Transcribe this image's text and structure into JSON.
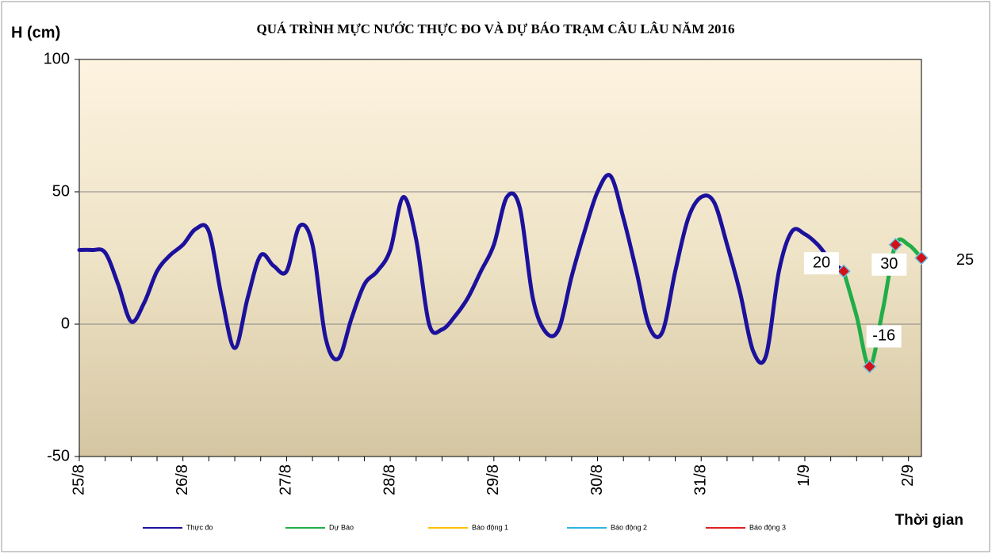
{
  "chart_data": {
    "type": "line",
    "title": "QUÁ TRÌNH MỰC NƯỚC THỰC ĐO VÀ DỰ BÁO TRẠM CÂU LÂU NĂM 2016",
    "y_label": "H (cm)",
    "x_label": "Thời gian",
    "categories": [
      "25/8",
      null,
      null,
      null,
      null,
      null,
      null,
      null,
      "26/8",
      null,
      null,
      null,
      null,
      null,
      null,
      null,
      "27/8",
      null,
      null,
      null,
      null,
      null,
      null,
      null,
      "28/8",
      null,
      null,
      null,
      null,
      null,
      null,
      null,
      "29/8",
      null,
      null,
      null,
      null,
      null,
      null,
      null,
      "30/8",
      null,
      null,
      null,
      null,
      null,
      null,
      null,
      "31/8",
      null,
      null,
      null,
      null,
      null,
      null,
      null,
      "1/9",
      null,
      null,
      null,
      null,
      null,
      null,
      null,
      "2/9",
      null
    ],
    "series": [
      {
        "name": "Thực đo",
        "color": "#1c119c",
        "values": [
          28,
          28,
          27,
          15,
          1,
          8,
          20,
          26,
          30,
          36,
          35,
          10,
          -9,
          10,
          26,
          22,
          20,
          37,
          30,
          -5,
          -13,
          2,
          15,
          20,
          28,
          48,
          32,
          0,
          -2,
          3,
          10,
          20,
          30,
          48,
          44,
          10,
          -3,
          -2,
          18,
          35,
          50,
          56,
          40,
          20,
          -1,
          -3,
          20,
          40,
          48,
          46,
          30,
          12,
          -10,
          -12,
          20,
          35,
          34,
          30,
          24,
          20,
          null,
          null,
          null,
          null,
          null,
          null
        ]
      },
      {
        "name": "Dự Báo",
        "color": "#21ad48",
        "values": [
          null,
          null,
          null,
          null,
          null,
          null,
          null,
          null,
          null,
          null,
          null,
          null,
          null,
          null,
          null,
          null,
          null,
          null,
          null,
          null,
          null,
          null,
          null,
          null,
          null,
          null,
          null,
          null,
          null,
          null,
          null,
          null,
          null,
          null,
          null,
          null,
          null,
          null,
          null,
          null,
          null,
          null,
          null,
          null,
          null,
          null,
          null,
          null,
          null,
          null,
          null,
          null,
          null,
          null,
          null,
          null,
          null,
          null,
          null,
          20,
          3,
          -16,
          5,
          30,
          30,
          25
        ],
        "value_labels": [
          null,
          null,
          null,
          null,
          null,
          null,
          null,
          null,
          null,
          null,
          null,
          null,
          null,
          null,
          null,
          null,
          null,
          null,
          null,
          null,
          null,
          null,
          null,
          null,
          null,
          null,
          null,
          null,
          null,
          null,
          null,
          null,
          null,
          null,
          null,
          null,
          null,
          null,
          null,
          null,
          null,
          null,
          null,
          null,
          null,
          null,
          null,
          null,
          null,
          null,
          null,
          null,
          null,
          null,
          null,
          null,
          null,
          null,
          null,
          "20",
          null,
          "-16",
          null,
          "30",
          null,
          "25"
        ]
      },
      {
        "name": "Báo động 1",
        "color": "#ffc000",
        "values": [
          null,
          null,
          null,
          null,
          null,
          null,
          null,
          null,
          null,
          null,
          null,
          null,
          null,
          null,
          null,
          null,
          null,
          null,
          null,
          null,
          null,
          null,
          null,
          null,
          null,
          null,
          null,
          null,
          null,
          null,
          null,
          null,
          null,
          null,
          null,
          null,
          null,
          null,
          null,
          null,
          null,
          null,
          null,
          null,
          null,
          null,
          null,
          null,
          null,
          null,
          null,
          null,
          null,
          null,
          null,
          null,
          null,
          null,
          null,
          null,
          null,
          null,
          null,
          null,
          null,
          null
        ]
      },
      {
        "name": "Báo động 2",
        "color": "#2fb3e0",
        "values": [
          null,
          null,
          null,
          null,
          null,
          null,
          null,
          null,
          null,
          null,
          null,
          null,
          null,
          null,
          null,
          null,
          null,
          null,
          null,
          null,
          null,
          null,
          null,
          null,
          null,
          null,
          null,
          null,
          null,
          null,
          null,
          null,
          null,
          null,
          null,
          null,
          null,
          null,
          null,
          null,
          null,
          null,
          null,
          null,
          null,
          null,
          null,
          null,
          null,
          null,
          null,
          null,
          null,
          null,
          null,
          null,
          null,
          null,
          null,
          null,
          null,
          null,
          null,
          null,
          null,
          null
        ]
      },
      {
        "name": "Báo động 3",
        "color": "#e02020",
        "values": [
          null,
          null,
          null,
          null,
          null,
          null,
          null,
          null,
          null,
          null,
          null,
          null,
          null,
          null,
          null,
          null,
          null,
          null,
          null,
          null,
          null,
          null,
          null,
          null,
          null,
          null,
          null,
          null,
          null,
          null,
          null,
          null,
          null,
          null,
          null,
          null,
          null,
          null,
          null,
          null,
          null,
          null,
          null,
          null,
          null,
          null,
          null,
          null,
          null,
          null,
          null,
          null,
          null,
          null,
          null,
          null,
          null,
          null,
          null,
          null,
          null,
          null,
          null,
          null,
          null,
          null
        ]
      }
    ],
    "ylim": [
      -50,
      100
    ],
    "yticks": [
      -50,
      0,
      50,
      100
    ],
    "grid": true,
    "legend": "bottom"
  }
}
